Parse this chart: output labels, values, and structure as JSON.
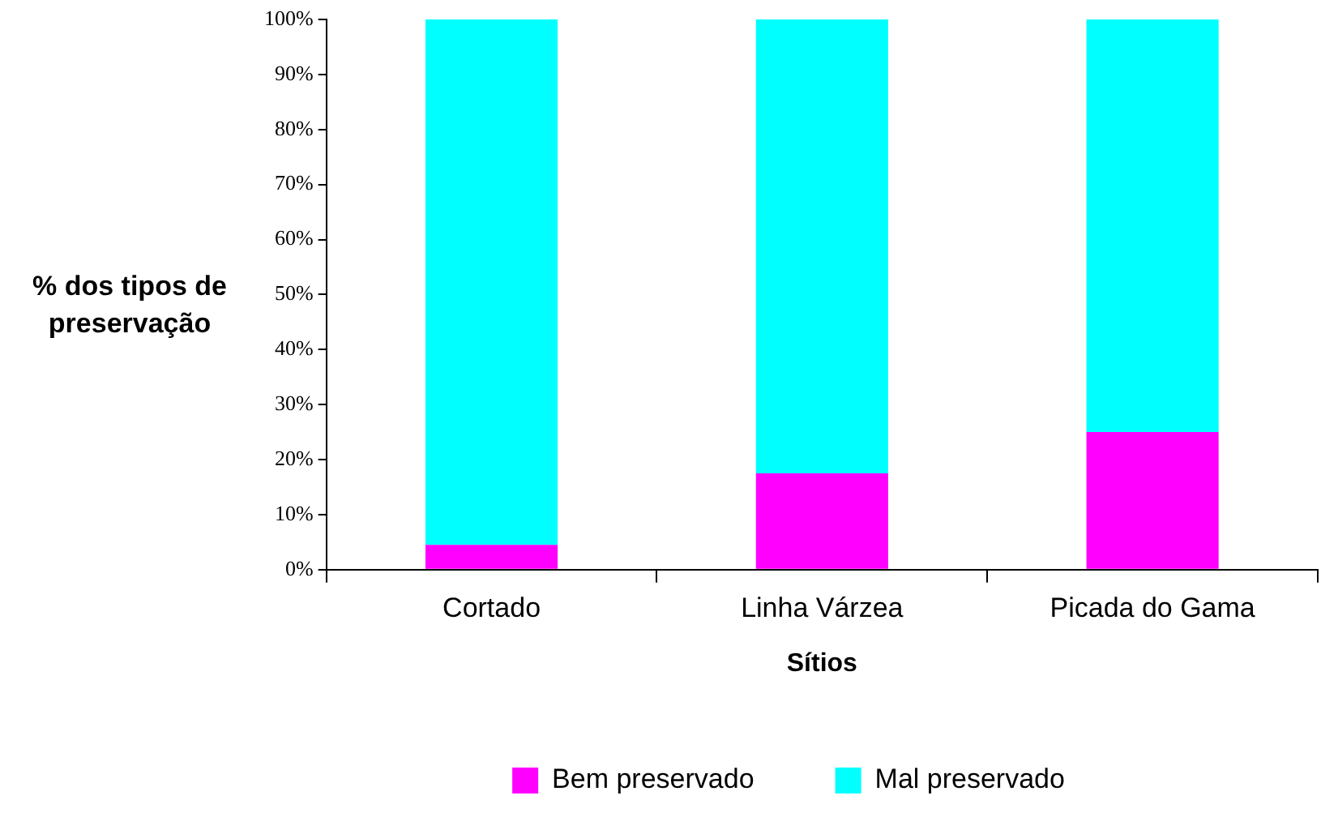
{
  "chart_data": {
    "type": "bar",
    "stacked": true,
    "xlabel": "Sítios",
    "ylabel": "% dos tipos de preservação",
    "categories": [
      "Cortado",
      "Linha Várzea",
      "Picada do Gama"
    ],
    "series": [
      {
        "name": "Bem preservado",
        "color": "#ff00ff",
        "values": [
          4.5,
          17.5,
          25
        ]
      },
      {
        "name": "Mal preservado",
        "color": "#00ffff",
        "values": [
          95.5,
          82.5,
          75
        ]
      }
    ],
    "ylim": [
      0,
      100
    ],
    "yticks": [
      {
        "value": 0,
        "label": "0%"
      },
      {
        "value": 10,
        "label": "10%"
      },
      {
        "value": 20,
        "label": "20%"
      },
      {
        "value": 30,
        "label": "30%"
      },
      {
        "value": 40,
        "label": "40%"
      },
      {
        "value": 50,
        "label": "50%"
      },
      {
        "value": 60,
        "label": "60%"
      },
      {
        "value": 70,
        "label": "70%"
      },
      {
        "value": 80,
        "label": "80%"
      },
      {
        "value": 90,
        "label": "90%"
      },
      {
        "value": 100,
        "label": "100%"
      }
    ],
    "legend": "bottom"
  }
}
